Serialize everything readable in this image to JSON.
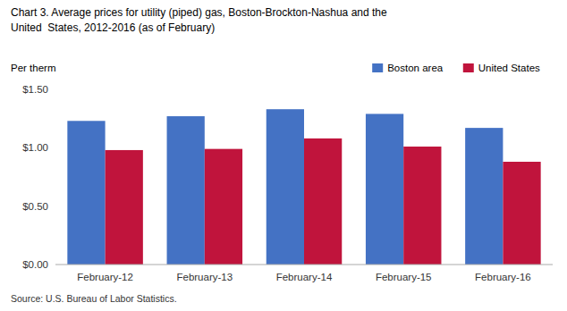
{
  "chart_data": {
    "type": "bar",
    "title": [
      "Chart 3. Average prices for utility (piped) gas, Boston-Brockton-Nashua and the",
      "United  States, 2012-2016 (as of February)"
    ],
    "y_label": "Per therm",
    "source": "Source: U.S. Bureau of Labor Statistics.",
    "categories": [
      "February-12",
      "February-13",
      "February-14",
      "February-15",
      "February-16"
    ],
    "series": [
      {
        "name": "Boston area",
        "color": "#4472C4",
        "values": [
          1.23,
          1.27,
          1.33,
          1.29,
          1.17
        ]
      },
      {
        "name": "United States",
        "color": "#C0143C",
        "values": [
          0.98,
          0.99,
          1.08,
          1.01,
          0.88
        ]
      }
    ],
    "ylim": [
      0,
      1.5
    ],
    "yticks": [
      {
        "value": 0,
        "label": "$0.00"
      },
      {
        "value": 0.5,
        "label": "$0.50"
      },
      {
        "value": 1,
        "label": "$1.00"
      },
      {
        "value": 1.5,
        "label": "$1.50"
      }
    ],
    "legend": "upper right",
    "grid": false
  }
}
